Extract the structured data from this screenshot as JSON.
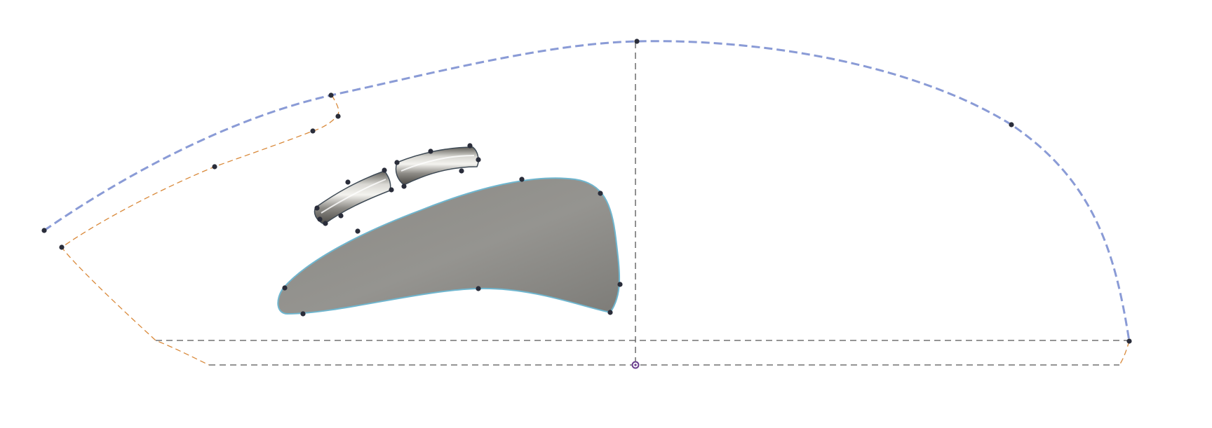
{
  "canvas": {
    "background": "#ffffff"
  },
  "colors": {
    "profile_curve": "#8a9bd6",
    "offset_curve": "#d9893a",
    "construction_line": "#555555",
    "body_fill": "#8e8d88",
    "body_edge": "#6fb6cf",
    "control_point": "#2a2d3a",
    "origin_point": "#6a3e8e"
  },
  "scene": {
    "description_items": [
      "profile-spline",
      "offset-spline",
      "construction-lines",
      "surface-body",
      "tube-segments",
      "control-points"
    ],
    "icons": {
      "control_point": "control-point-icon",
      "origin_point": "origin-point-icon"
    }
  }
}
